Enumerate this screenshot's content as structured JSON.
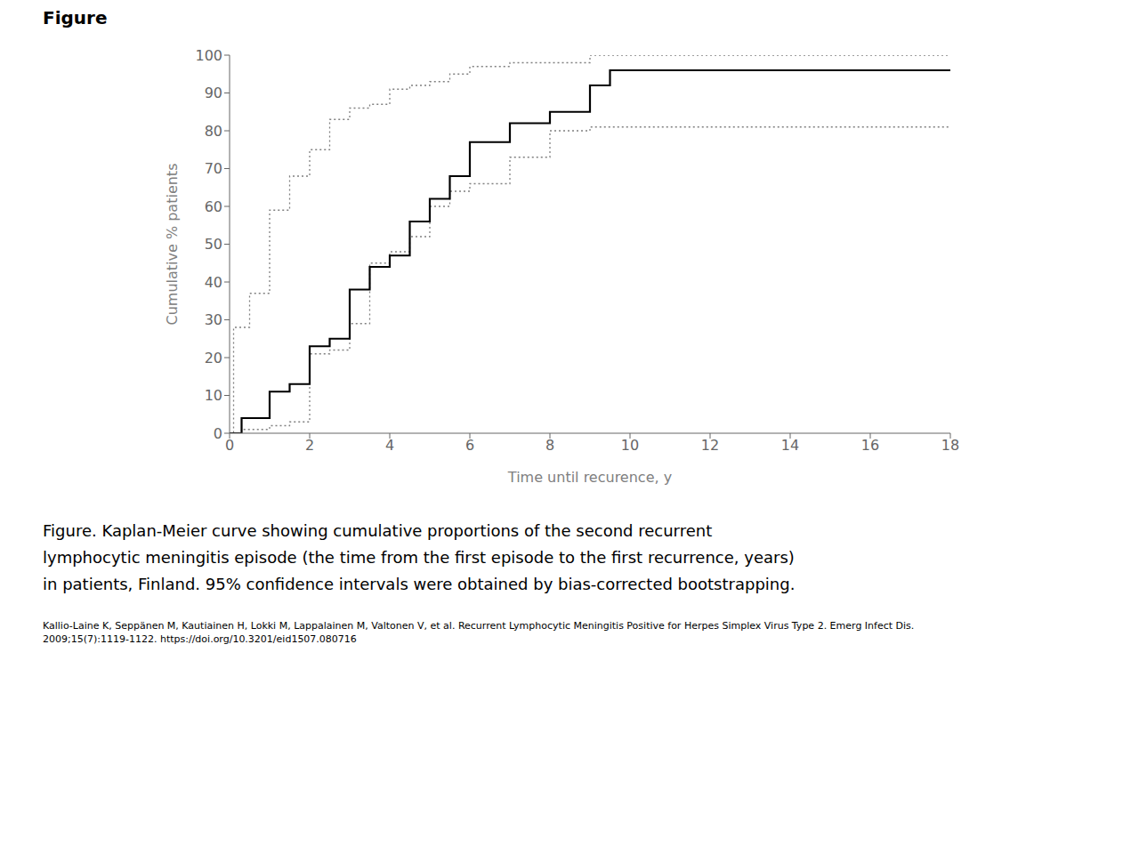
{
  "chart_data": {
    "type": "line",
    "title": "Figure",
    "xlabel": "Time until recurence, y",
    "ylabel": "Cumulative % patients",
    "xlim": [
      0,
      18
    ],
    "ylim": [
      0,
      100
    ],
    "xticks": [
      0,
      2,
      4,
      6,
      8,
      10,
      12,
      14,
      16,
      18
    ],
    "yticks": [
      0,
      10,
      20,
      30,
      40,
      50,
      60,
      70,
      80,
      90,
      100
    ],
    "grid": false,
    "series": [
      {
        "color": "#808080",
        "line_style": "dotted",
        "x": [
          0,
          0.1,
          0.1,
          0.5,
          0.5,
          1.0,
          1.0,
          1.5,
          1.5,
          2.0,
          2.0,
          2.5,
          2.5,
          3.0,
          3.0,
          3.5,
          3.5,
          4.0,
          4.0,
          4.5,
          4.5,
          5.0,
          5.0,
          5.5,
          5.5,
          6.0,
          6.0,
          7.0,
          7.0,
          9.0,
          9.0,
          9.5,
          9.5,
          18.0
        ],
        "values": [
          0,
          0,
          28,
          28,
          37,
          37,
          59,
          59,
          68,
          68,
          75,
          75,
          83,
          83,
          86,
          86,
          87,
          87,
          91,
          91,
          92,
          92,
          93,
          93,
          95,
          95,
          97,
          97,
          98,
          98,
          100,
          100,
          100,
          100
        ]
      },
      {
        "color": "#808080",
        "line_style": "dotted",
        "x": [
          0,
          0.3,
          0.3,
          1.0,
          1.0,
          1.5,
          1.5,
          2.0,
          2.0,
          2.5,
          2.5,
          3.0,
          3.0,
          3.5,
          3.5,
          4.0,
          4.0,
          4.5,
          4.5,
          5.0,
          5.0,
          5.5,
          5.5,
          6.0,
          6.0,
          7.0,
          7.0,
          8.0,
          8.0,
          9.0,
          9.0,
          9.5,
          9.5,
          18.0
        ],
        "values": [
          0,
          0,
          1,
          1,
          2,
          2,
          3,
          3,
          21,
          21,
          22,
          22,
          29,
          29,
          45,
          45,
          48,
          48,
          52,
          52,
          60,
          60,
          64,
          64,
          66,
          66,
          73,
          73,
          80,
          80,
          81,
          81,
          81,
          81
        ]
      },
      {
        "color": "#000000",
        "line_style": "solid",
        "x": [
          0,
          0.3,
          0.3,
          1.0,
          1.0,
          1.5,
          1.5,
          2.0,
          2.0,
          2.5,
          2.5,
          3.0,
          3.0,
          3.5,
          3.5,
          4.0,
          4.0,
          4.5,
          4.5,
          5.0,
          5.0,
          5.5,
          5.5,
          6.0,
          6.0,
          7.0,
          7.0,
          8.0,
          8.0,
          9.0,
          9.0,
          9.5,
          9.5,
          18.0
        ],
        "values": [
          0,
          0,
          4,
          4,
          11,
          11,
          13,
          13,
          23,
          23,
          25,
          25,
          38,
          38,
          44,
          44,
          47,
          47,
          56,
          56,
          62,
          62,
          68,
          68,
          77,
          77,
          82,
          82,
          85,
          85,
          92,
          92,
          96,
          96
        ]
      }
    ],
    "caption": [
      "Figure. Kaplan-Meier curve showing cumulative proportions of the second recurrent",
      "lymphocytic meningitis episode (the time from the first episode to the first recurrence, years)",
      "in patients, Finland. 95% confidence intervals were obtained by bias-corrected bootstrapping."
    ],
    "citation": "Kallio-Laine K, Seppänen M, Kautiainen H, Lokki M, Lappalainen M, Valtonen V, et al. Recurrent Lymphocytic Meningitis Positive for Herpes Simplex Virus Type 2. Emerg Infect Dis.\n2009;15(7):1119-1122. https://doi.org/10.3201/eid1507.080716"
  }
}
